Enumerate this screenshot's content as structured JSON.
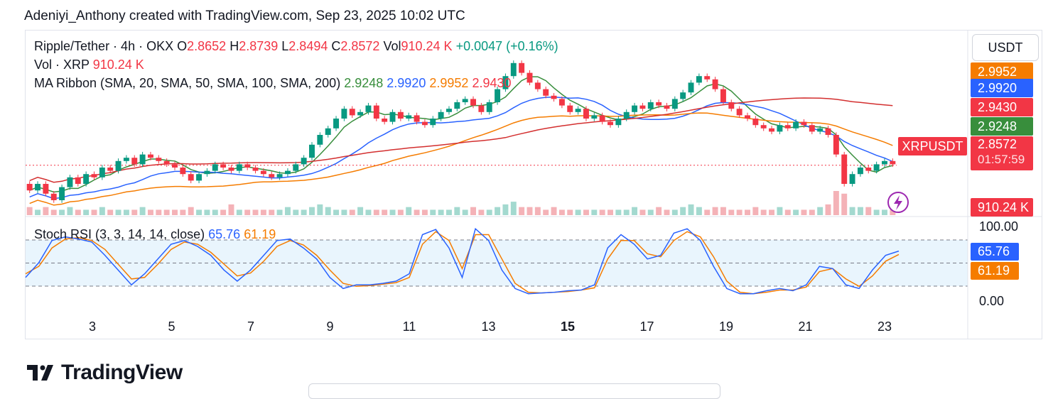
{
  "header": {
    "credit": "Adeniyi_Anthony created with TradingView.com, Sep 23, 2025 10:02 UTC"
  },
  "legend": {
    "symbol": "Ripple/Tether · 4h · OKX",
    "o_label": "O",
    "o_value": "2.8652",
    "h_label": "H",
    "h_value": "2.8739",
    "l_label": "L",
    "l_value": "2.8494",
    "c_label": "C",
    "c_value": "2.8572",
    "vol_label": "Vol",
    "vol_value": "910.24 K",
    "change": "+0.0047 (+0.16%)",
    "volume_line_label": "Vol · XRP",
    "volume_line_value": "910.24 K",
    "ma_label": "MA Ribbon (SMA, 20, SMA, 50, SMA, 100, SMA, 200)",
    "ma_values": [
      "2.9248",
      "2.9920",
      "2.9952",
      "2.9430"
    ]
  },
  "currency_box": "USDT",
  "price_tags": [
    {
      "value": "2.9952",
      "color": "#f57c00"
    },
    {
      "value": "2.9920",
      "color": "#2962ff"
    },
    {
      "value": "2.9430",
      "color": "#f23645"
    },
    {
      "value": "2.9248",
      "color": "#388e3c"
    }
  ],
  "last_price": {
    "ticker": "XRPUSDT",
    "value": "2.8572",
    "countdown": "01:57:59"
  },
  "volume_tag": "910.24 K",
  "stoch": {
    "label": "Stoch RSI (3, 3, 14, 14, close)",
    "k_value": "65.76",
    "d_value": "61.19",
    "top_tick": "100.00",
    "bottom_tick": "0.00",
    "k_color": "#2962ff",
    "d_color": "#f57c00"
  },
  "logo_text": "TradingView",
  "chart_data": {
    "type": "candlestick",
    "symbol": "XRPUSDT",
    "timeframe": "4h",
    "x_ticks": [
      {
        "label": "3",
        "day": 3,
        "bold": false
      },
      {
        "label": "5",
        "day": 5,
        "bold": false
      },
      {
        "label": "7",
        "day": 7,
        "bold": false
      },
      {
        "label": "9",
        "day": 9,
        "bold": false
      },
      {
        "label": "11",
        "day": 11,
        "bold": false
      },
      {
        "label": "13",
        "day": 13,
        "bold": false
      },
      {
        "label": "15",
        "day": 15,
        "bold": true
      },
      {
        "label": "17",
        "day": 17,
        "bold": false
      },
      {
        "label": "19",
        "day": 19,
        "bold": false
      },
      {
        "label": "21",
        "day": 21,
        "bold": false
      },
      {
        "label": "23",
        "day": 23,
        "bold": false
      }
    ],
    "price_range": [
      2.7,
      3.2
    ],
    "last_price": 2.8572,
    "candles_close": [
      2.78,
      2.8,
      2.77,
      2.75,
      2.79,
      2.82,
      2.8,
      2.83,
      2.82,
      2.85,
      2.84,
      2.87,
      2.88,
      2.86,
      2.89,
      2.88,
      2.87,
      2.86,
      2.85,
      2.83,
      2.81,
      2.83,
      2.84,
      2.86,
      2.85,
      2.84,
      2.86,
      2.85,
      2.84,
      2.83,
      2.82,
      2.83,
      2.84,
      2.86,
      2.88,
      2.92,
      2.95,
      2.97,
      3.0,
      3.03,
      3.01,
      3.02,
      3.04,
      3.0,
      2.99,
      3.02,
      3.0,
      3.01,
      2.99,
      2.98,
      3.0,
      3.02,
      3.03,
      3.05,
      3.06,
      3.04,
      3.02,
      3.05,
      3.09,
      3.13,
      3.17,
      3.14,
      3.11,
      3.09,
      3.07,
      3.06,
      3.04,
      3.02,
      3.03,
      3.0,
      3.01,
      2.99,
      2.98,
      3.0,
      3.02,
      3.04,
      3.03,
      3.05,
      3.04,
      3.03,
      3.06,
      3.08,
      3.11,
      3.13,
      3.12,
      3.09,
      3.05,
      3.03,
      3.01,
      3.0,
      2.98,
      2.97,
      2.96,
      2.98,
      2.97,
      2.99,
      2.98,
      2.96,
      2.97,
      2.95,
      2.89,
      2.8,
      2.83,
      2.85,
      2.84,
      2.86,
      2.87,
      2.86
    ],
    "candles_open": [
      2.8,
      2.78,
      2.8,
      2.77,
      2.75,
      2.79,
      2.82,
      2.8,
      2.83,
      2.82,
      2.85,
      2.84,
      2.87,
      2.88,
      2.86,
      2.89,
      2.88,
      2.87,
      2.86,
      2.85,
      2.83,
      2.81,
      2.83,
      2.84,
      2.86,
      2.85,
      2.84,
      2.86,
      2.85,
      2.84,
      2.83,
      2.82,
      2.83,
      2.84,
      2.86,
      2.88,
      2.92,
      2.95,
      2.97,
      3.0,
      3.03,
      3.01,
      3.02,
      3.04,
      3.0,
      2.99,
      3.02,
      3.0,
      3.01,
      2.99,
      2.98,
      3.0,
      3.02,
      3.03,
      3.05,
      3.06,
      3.04,
      3.02,
      3.05,
      3.09,
      3.13,
      3.17,
      3.14,
      3.11,
      3.09,
      3.07,
      3.06,
      3.04,
      3.02,
      3.03,
      3.0,
      3.01,
      2.99,
      2.98,
      3.0,
      3.02,
      3.04,
      3.03,
      3.05,
      3.04,
      3.03,
      3.06,
      3.08,
      3.11,
      3.13,
      3.12,
      3.09,
      3.05,
      3.03,
      3.01,
      3.0,
      2.98,
      2.97,
      2.96,
      2.98,
      2.97,
      2.99,
      2.98,
      2.96,
      2.97,
      2.95,
      2.89,
      2.8,
      2.83,
      2.85,
      2.84,
      2.86,
      2.87
    ],
    "volume": [
      3,
      2,
      3,
      2,
      2,
      3,
      2,
      2,
      2,
      3,
      2,
      2,
      2,
      2,
      3,
      2,
      2,
      2,
      2,
      2,
      3,
      2,
      2,
      2,
      2,
      4,
      2,
      2,
      2,
      2,
      2,
      2,
      3,
      2,
      2,
      3,
      4,
      3,
      2,
      2,
      2,
      3,
      2,
      2,
      2,
      2,
      2,
      3,
      2,
      2,
      2,
      2,
      2,
      3,
      2,
      3,
      2,
      2,
      3,
      4,
      5,
      3,
      3,
      3,
      2,
      3,
      2,
      2,
      2,
      2,
      2,
      2,
      2,
      2,
      2,
      3,
      2,
      2,
      3,
      2,
      2,
      3,
      4,
      3,
      2,
      3,
      3,
      2,
      2,
      2,
      3,
      2,
      2,
      3,
      2,
      2,
      2,
      2,
      3,
      4,
      9,
      8,
      3,
      3,
      3,
      2,
      2,
      2
    ],
    "stoch_k": [
      30,
      50,
      80,
      85,
      82,
      78,
      60,
      40,
      20,
      35,
      55,
      75,
      80,
      72,
      60,
      40,
      25,
      40,
      60,
      80,
      82,
      70,
      55,
      30,
      15,
      20,
      20,
      22,
      25,
      35,
      88,
      95,
      70,
      30,
      96,
      80,
      40,
      15,
      8,
      9,
      10,
      12,
      13,
      20,
      70,
      88,
      75,
      55,
      60,
      90,
      96,
      80,
      45,
      15,
      8,
      8,
      12,
      15,
      12,
      20,
      45,
      42,
      20,
      15,
      40,
      60,
      65.76
    ],
    "stoch_d": [
      35,
      45,
      70,
      82,
      84,
      80,
      68,
      48,
      28,
      30,
      48,
      68,
      78,
      75,
      64,
      48,
      32,
      36,
      52,
      72,
      80,
      74,
      60,
      40,
      22,
      18,
      19,
      21,
      23,
      30,
      75,
      92,
      80,
      42,
      88,
      88,
      55,
      22,
      10,
      9,
      10,
      11,
      13,
      16,
      55,
      80,
      80,
      62,
      58,
      80,
      92,
      85,
      58,
      25,
      10,
      8,
      10,
      13,
      13,
      17,
      38,
      42,
      28,
      18,
      32,
      52,
      61.19
    ]
  }
}
